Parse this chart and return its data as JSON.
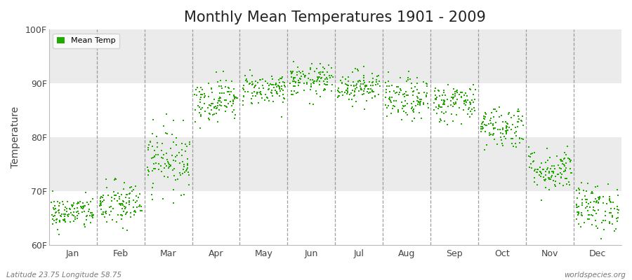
{
  "title": "Monthly Mean Temperatures 1901 - 2009",
  "ylabel": "Temperature",
  "xlabel_months": [
    "Jan",
    "Feb",
    "Mar",
    "Apr",
    "May",
    "Jun",
    "Jul",
    "Aug",
    "Sep",
    "Oct",
    "Nov",
    "Dec"
  ],
  "ylim": [
    60,
    100
  ],
  "yticks": [
    60,
    70,
    80,
    90,
    100
  ],
  "ytick_labels": [
    "60F",
    "70F",
    "80F",
    "90F",
    "100F"
  ],
  "dot_color": "#22aa00",
  "dot_size": 3,
  "background_color": "#ffffff",
  "plot_bg_color": "#f2f2f2",
  "title_fontsize": 15,
  "legend_label": "Mean Temp",
  "footer_left": "Latitude 23.75 Longitude 58.75",
  "footer_right": "worldspecies.org",
  "monthly_mean": [
    66.0,
    67.5,
    76.0,
    87.0,
    89.0,
    90.5,
    89.5,
    87.0,
    86.5,
    82.0,
    74.0,
    67.0
  ],
  "monthly_std": [
    1.5,
    2.2,
    3.0,
    2.0,
    1.5,
    1.5,
    1.5,
    2.0,
    1.8,
    2.0,
    2.0,
    2.2
  ],
  "n_years": 109,
  "seed": 42,
  "band_color_even": "#ffffff",
  "band_color_odd": "#ebebeb",
  "vline_color": "#888888",
  "spine_color": "#bbbbbb"
}
